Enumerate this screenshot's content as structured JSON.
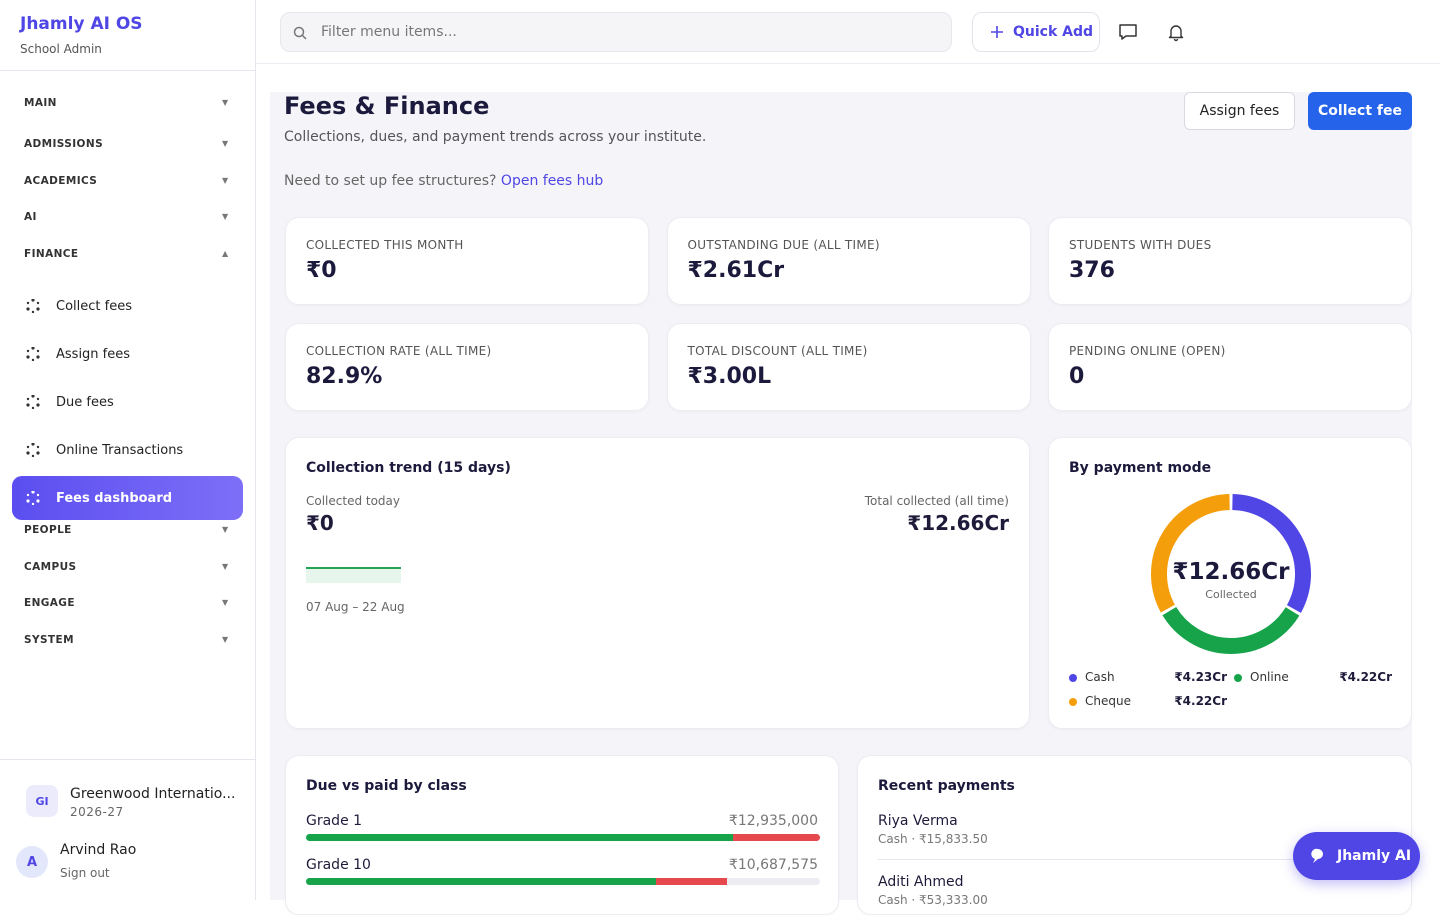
{
  "sidebar": {
    "brand": "Jhamly AI OS",
    "role": "School Admin",
    "nav": [
      {
        "label": "MAIN"
      },
      {
        "label": "ADMISSIONS"
      },
      {
        "label": "ACADEMICS"
      },
      {
        "label": "AI"
      },
      {
        "label": "FINANCE",
        "items": [
          "Collect fees",
          "Assign fees",
          "Due fees",
          "Online Transactions",
          "Fees dashboard"
        ]
      },
      {
        "label": "PEOPLE"
      },
      {
        "label": "CAMPUS"
      },
      {
        "label": "ENGAGE"
      },
      {
        "label": "SYSTEM"
      }
    ],
    "school": {
      "initials": "GI",
      "name": "Greenwood Internatio...",
      "year": "2026-27"
    },
    "user": {
      "initial": "A",
      "name": "Arvind Rao",
      "action": "Sign out"
    }
  },
  "topbar": {
    "search_placeholder": "Filter menu items...",
    "quick_add": "Quick Add"
  },
  "page": {
    "title": "Fees & Finance",
    "subtitle": "Collections, dues, and payment trends across your institute.",
    "hint": "Need to set up fee structures?",
    "hint_link": "Open fees hub",
    "actions": [
      "Assign fees",
      "Collect fee"
    ]
  },
  "stats": [
    {
      "label": "COLLECTED THIS MONTH",
      "value": "₹0"
    },
    {
      "label": "OUTSTANDING DUE (ALL TIME)",
      "value": "₹2.61Cr"
    },
    {
      "label": "STUDENTS WITH DUES",
      "value": "376"
    },
    {
      "label": "COLLECTION RATE (ALL TIME)",
      "value": "82.9%"
    },
    {
      "label": "TOTAL DISCOUNT (ALL TIME)",
      "value": "₹3.00L"
    },
    {
      "label": "PENDING ONLINE (OPEN)",
      "value": "0"
    }
  ],
  "trend": {
    "title": "Collection trend (15 days)",
    "today_label": "Collected today",
    "today_value": "₹0",
    "total_label": "Total collected (all time)",
    "total_value": "₹12.66Cr",
    "range": "07 Aug – 22 Aug"
  },
  "payment_mode": {
    "title": "By payment mode",
    "center_value": "₹12.66Cr",
    "center_label": "Collected",
    "series": [
      {
        "name": "Cash",
        "color": "#4f46e5",
        "value": 4.23,
        "value_label": "₹4.23Cr"
      },
      {
        "name": "Online",
        "color": "#16a34a",
        "value": 4.22,
        "value_label": "₹4.22Cr"
      },
      {
        "name": "Cheque",
        "color": "#f59e0b",
        "value": 4.22,
        "value_label": "₹4.22Cr"
      }
    ]
  },
  "classes": {
    "title": "Due vs paid by class",
    "rows": [
      {
        "name": "Grade 1",
        "total": "₹12,935,000",
        "paid_pct": 83,
        "due_pct": 17
      },
      {
        "name": "Grade 10",
        "total": "₹10,687,575",
        "paid_pct": 68,
        "due_pct": 14
      }
    ]
  },
  "recent": {
    "title": "Recent payments",
    "rows": [
      {
        "name": "Riya Verma",
        "detail": "Cash · ₹15,833.50"
      },
      {
        "name": "Aditi Ahmed",
        "detail": "Cash · ₹53,333.00"
      }
    ]
  },
  "assistant": "Jhamly AI"
}
